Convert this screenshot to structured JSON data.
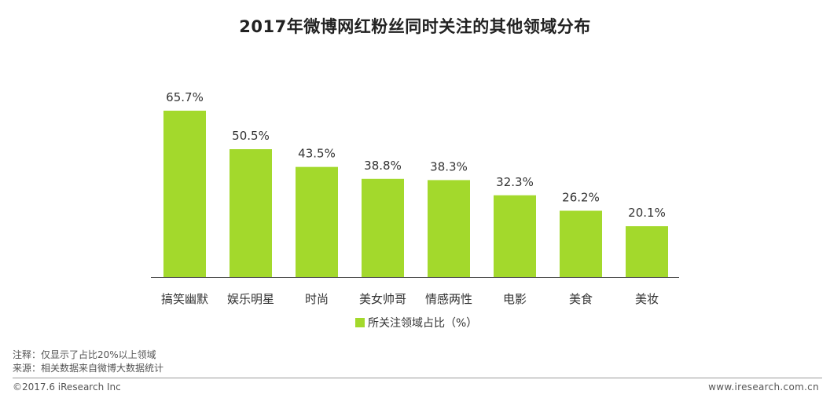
{
  "title": "2017年微博网红粉丝同时关注的其他领域分布",
  "chart_data": {
    "type": "bar",
    "title": "2017年微博网红粉丝同时关注的其他领域分布",
    "categories": [
      "搞笑幽默",
      "娱乐明星",
      "时尚",
      "美女帅哥",
      "情感两性",
      "电影",
      "美食",
      "美妆"
    ],
    "series": [
      {
        "name": "所关注领域占比（%）",
        "values": [
          65.7,
          50.5,
          43.5,
          38.8,
          38.3,
          32.3,
          26.2,
          20.1
        ],
        "labels": [
          "65.7%",
          "50.5%",
          "43.5%",
          "38.8%",
          "38.3%",
          "32.3%",
          "26.2%",
          "20.1%"
        ]
      }
    ],
    "xlabel": "",
    "ylabel": "",
    "ylim": [
      0,
      70
    ],
    "grid": false,
    "legend": "bottom-center",
    "bar_color": "#a3d92c"
  },
  "notes": {
    "note": "注释：仅显示了占比20%以上领域",
    "source": "来源：相关数据来自微博大数据统计"
  },
  "footer": {
    "copyright": "©2017.6 iResearch Inc",
    "site": "www.iresearch.com.cn"
  }
}
